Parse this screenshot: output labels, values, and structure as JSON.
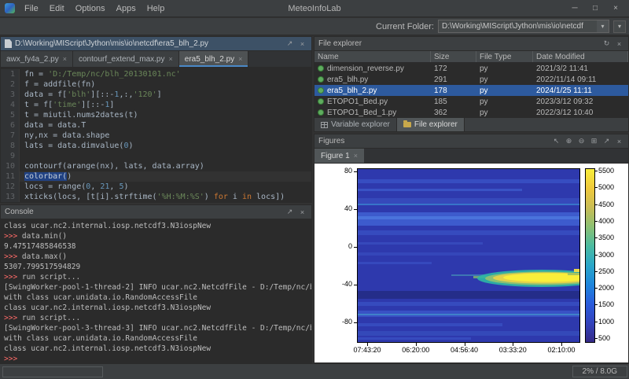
{
  "window": {
    "title": "MeteoInfoLab",
    "menus": [
      "File",
      "Edit",
      "Options",
      "Apps",
      "Help"
    ],
    "controls": [
      {
        "glyph": "─",
        "name": "minimize-button"
      },
      {
        "glyph": "□",
        "name": "maximize-button"
      },
      {
        "glyph": "×",
        "name": "close-button"
      }
    ],
    "memory": "2% / 8.0G"
  },
  "toolbar": {
    "label": "Current Folder:",
    "path": "D:\\Working\\MIScript\\Jython\\mis\\io\\netcdf",
    "dropdown_glyph": "▾"
  },
  "editor": {
    "path": "D:\\Working\\MIScript\\Jython\\mis\\io\\netcdf\\era5_blh_2.py",
    "header_icons": [
      {
        "glyph": "↗",
        "name": "float-icon"
      },
      {
        "glyph": "×",
        "name": "close-icon"
      }
    ],
    "tabs": [
      {
        "label": "awx_fy4a_2.py",
        "active": false
      },
      {
        "label": "contourf_extend_max.py",
        "active": false
      },
      {
        "label": "era5_blh_2.py",
        "active": true
      }
    ],
    "cursor_line": 11,
    "code": [
      [
        [
          "fn = ",
          "p"
        ],
        [
          "'D:/Temp/nc/blh_20130101.nc'",
          "s"
        ]
      ],
      [
        [
          "f = addfile(fn)",
          "p"
        ]
      ],
      [
        [
          "data = f[",
          "p"
        ],
        [
          "'blh'",
          "s"
        ],
        [
          "][::-",
          "p"
        ],
        [
          "1",
          "n"
        ],
        [
          ",:,",
          "p"
        ],
        [
          "'120'",
          "s"
        ],
        [
          "]",
          "p"
        ]
      ],
      [
        [
          "t = f[",
          "p"
        ],
        [
          "'time'",
          "s"
        ],
        [
          "][::-",
          "p"
        ],
        [
          "1",
          "n"
        ],
        [
          "]",
          "p"
        ]
      ],
      [
        [
          "t = miutil.nums2dates(t)",
          "p"
        ]
      ],
      [
        [
          "data = data.T",
          "p"
        ]
      ],
      [
        [
          "ny,nx = data.shape",
          "p"
        ]
      ],
      [
        [
          "lats = data.dimvalue(",
          "p"
        ],
        [
          "0",
          "n"
        ],
        [
          ")",
          "p"
        ]
      ],
      [],
      [
        [
          "contourf(arange(nx), lats, data.array)",
          "p"
        ]
      ],
      [
        [
          "colorbar(",
          "h"
        ],
        [
          ")",
          "p"
        ]
      ],
      [
        [
          "locs = range(",
          "p"
        ],
        [
          "0",
          "n"
        ],
        [
          ", ",
          "p"
        ],
        [
          "21",
          "n"
        ],
        [
          ", ",
          "p"
        ],
        [
          "5",
          "n"
        ],
        [
          ")",
          "p"
        ]
      ],
      [
        [
          "xticks(locs, [t[i].strftime(",
          "p"
        ],
        [
          "'%H:%M:%S'",
          "s"
        ],
        [
          ") ",
          "p"
        ],
        [
          "for",
          "k"
        ],
        [
          " i ",
          "p"
        ],
        [
          "in",
          "k"
        ],
        [
          " locs])",
          "p"
        ]
      ]
    ]
  },
  "console": {
    "title": "Console",
    "header_icons": [
      {
        "glyph": "↗",
        "name": "float-icon"
      },
      {
        "glyph": "×",
        "name": "close-icon"
      }
    ],
    "lines": [
      [
        [
          "class ucar.nc2.internal.iosp.netcdf3.N3iospNew",
          "w"
        ]
      ],
      [
        [
          ">>> ",
          "r"
        ],
        [
          "data.min()",
          "w"
        ]
      ],
      [
        [
          "9.47517485846538",
          "w"
        ]
      ],
      [
        [
          ">>> ",
          "r"
        ],
        [
          "data.max()",
          "w"
        ]
      ],
      [
        [
          "5307.799517594829",
          "w"
        ]
      ],
      [
        [
          ">>> ",
          "r"
        ],
        [
          "run script...",
          "w"
        ]
      ],
      [
        [
          "[SwingWorker-pool-1-thread-2] INFO ucar.nc2.NetcdfFile - D:/Temp/nc/blh_2013010",
          "w"
        ]
      ],
      [
        [
          "with class ucar.unidata.io.RandomAccessFile",
          "w"
        ]
      ],
      [
        [
          "class ucar.nc2.internal.iosp.netcdf3.N3iospNew",
          "w"
        ]
      ],
      [
        [
          ">>> ",
          "r"
        ],
        [
          "run script...",
          "w"
        ]
      ],
      [
        [
          "[SwingWorker-pool-3-thread-3] INFO ucar.nc2.NetcdfFile - D:/Temp/nc/blh_201301",
          "w"
        ]
      ],
      [
        [
          "with class ucar.unidata.io.RandomAccessFile",
          "w"
        ]
      ],
      [
        [
          "class ucar.nc2.internal.iosp.netcdf3.N3iospNew",
          "w"
        ]
      ],
      [
        [
          ">>>",
          "r"
        ]
      ]
    ]
  },
  "files": {
    "title": "File explorer",
    "header_icons": [
      {
        "glyph": "↻",
        "name": "refresh-icon"
      },
      {
        "glyph": "×",
        "name": "close-icon"
      }
    ],
    "columns": [
      "Name",
      "Size",
      "File Type",
      "Date Modified"
    ],
    "rows": [
      {
        "name": "dimension_reverse.py",
        "size": "172",
        "type": "py",
        "modified": "2021/3/2 11:41",
        "selected": false
      },
      {
        "name": "era5_blh.py",
        "size": "291",
        "type": "py",
        "modified": "2022/11/14 09:11",
        "selected": false
      },
      {
        "name": "era5_blh_2.py",
        "size": "178",
        "type": "py",
        "modified": "2024/1/25 11:11",
        "selected": true
      },
      {
        "name": "ETOPO1_Bed.py",
        "size": "185",
        "type": "py",
        "modified": "2023/3/12 09:32",
        "selected": false
      },
      {
        "name": "ETOPO1_Bed_1.py",
        "size": "362",
        "type": "py",
        "modified": "2022/3/12 10:40",
        "selected": false
      }
    ],
    "tabs": [
      {
        "label": "Variable explorer",
        "active": false,
        "icon": "grid"
      },
      {
        "label": "File explorer",
        "active": true,
        "icon": "folder"
      }
    ]
  },
  "figures": {
    "title": "Figures",
    "header_icons": [
      {
        "glyph": "↖",
        "name": "select-icon"
      },
      {
        "glyph": "⊕",
        "name": "zoom-in-icon"
      },
      {
        "glyph": "⊖",
        "name": "zoom-out-icon"
      },
      {
        "glyph": "⊞",
        "name": "full-extent-icon"
      },
      {
        "glyph": "↗",
        "name": "float-icon"
      },
      {
        "glyph": "×",
        "name": "close-icon"
      }
    ],
    "tab": "Figure 1",
    "chart_data": {
      "type": "heatmap",
      "yticks": [
        "80",
        "40",
        "0",
        "-40",
        "-80"
      ],
      "xticks": [
        "07:43:20",
        "06:20:00",
        "04:56:40",
        "03:33:20",
        "02:10:00"
      ],
      "colorbar_ticks": [
        "5500",
        "5000",
        "4500",
        "4000",
        "3500",
        "3000",
        "2500",
        "2000",
        "1500",
        "1000",
        "500"
      ],
      "colorbar_colors": [
        "#f9ee3a",
        "#efc93c",
        "#c9bd55",
        "#8cc073",
        "#4bbba0",
        "#2aa7c8",
        "#1d86dc",
        "#2a5cdc",
        "#3343bd",
        "#352a87"
      ],
      "colorbar_range": [
        500,
        5500
      ],
      "description": "contourf of boundary layer height vs latitude and time; low blue background with high yellow maximum band near latitude -30"
    }
  }
}
